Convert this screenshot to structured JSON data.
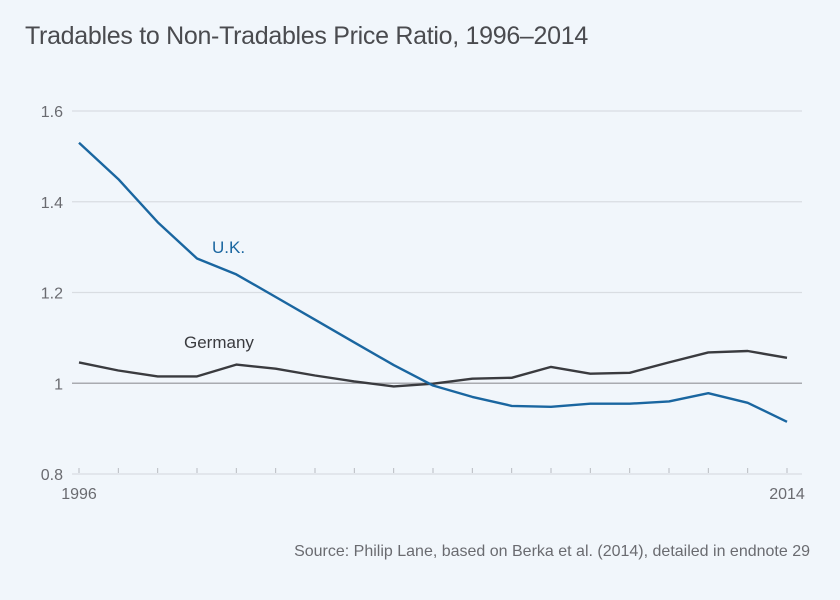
{
  "chart_data": {
    "type": "line",
    "title": "Tradables to Non-Tradables Price Ratio, 1996–2014",
    "source": "Source: Philip Lane, based on Berka et al. (2014), detailed in endnote 29",
    "xlabel": "",
    "ylabel": "",
    "x": [
      1996,
      1997,
      1998,
      1999,
      2000,
      2001,
      2002,
      2003,
      2004,
      2005,
      2006,
      2007,
      2008,
      2009,
      2010,
      2011,
      2012,
      2013,
      2014
    ],
    "xlim": [
      1996,
      2014
    ],
    "x_tick_labels": [
      "1996",
      "2014"
    ],
    "ylim": [
      0.8,
      1.6
    ],
    "y_ticks": [
      0.8,
      1,
      1.2,
      1.4,
      1.6
    ],
    "y_tick_labels": [
      "0.8",
      "1",
      "1.2",
      "1.4",
      "1.6"
    ],
    "grid": true,
    "reference_line": 1,
    "series": [
      {
        "name": "U.K.",
        "color": "#1a66a0",
        "values": [
          1.53,
          1.45,
          1.355,
          1.275,
          1.24,
          1.19,
          1.14,
          1.09,
          1.04,
          0.995,
          0.97,
          0.95,
          0.948,
          0.955,
          0.955,
          0.96,
          0.978,
          0.957,
          0.915
        ]
      },
      {
        "name": "Germany",
        "color": "#3a3b3f",
        "values": [
          1.046,
          1.028,
          1.015,
          1.015,
          1.041,
          1.032,
          1.017,
          1.004,
          0.993,
          0.999,
          1.01,
          1.012,
          1.036,
          1.021,
          1.023,
          1.046,
          1.068,
          1.071,
          1.056
        ]
      }
    ]
  }
}
